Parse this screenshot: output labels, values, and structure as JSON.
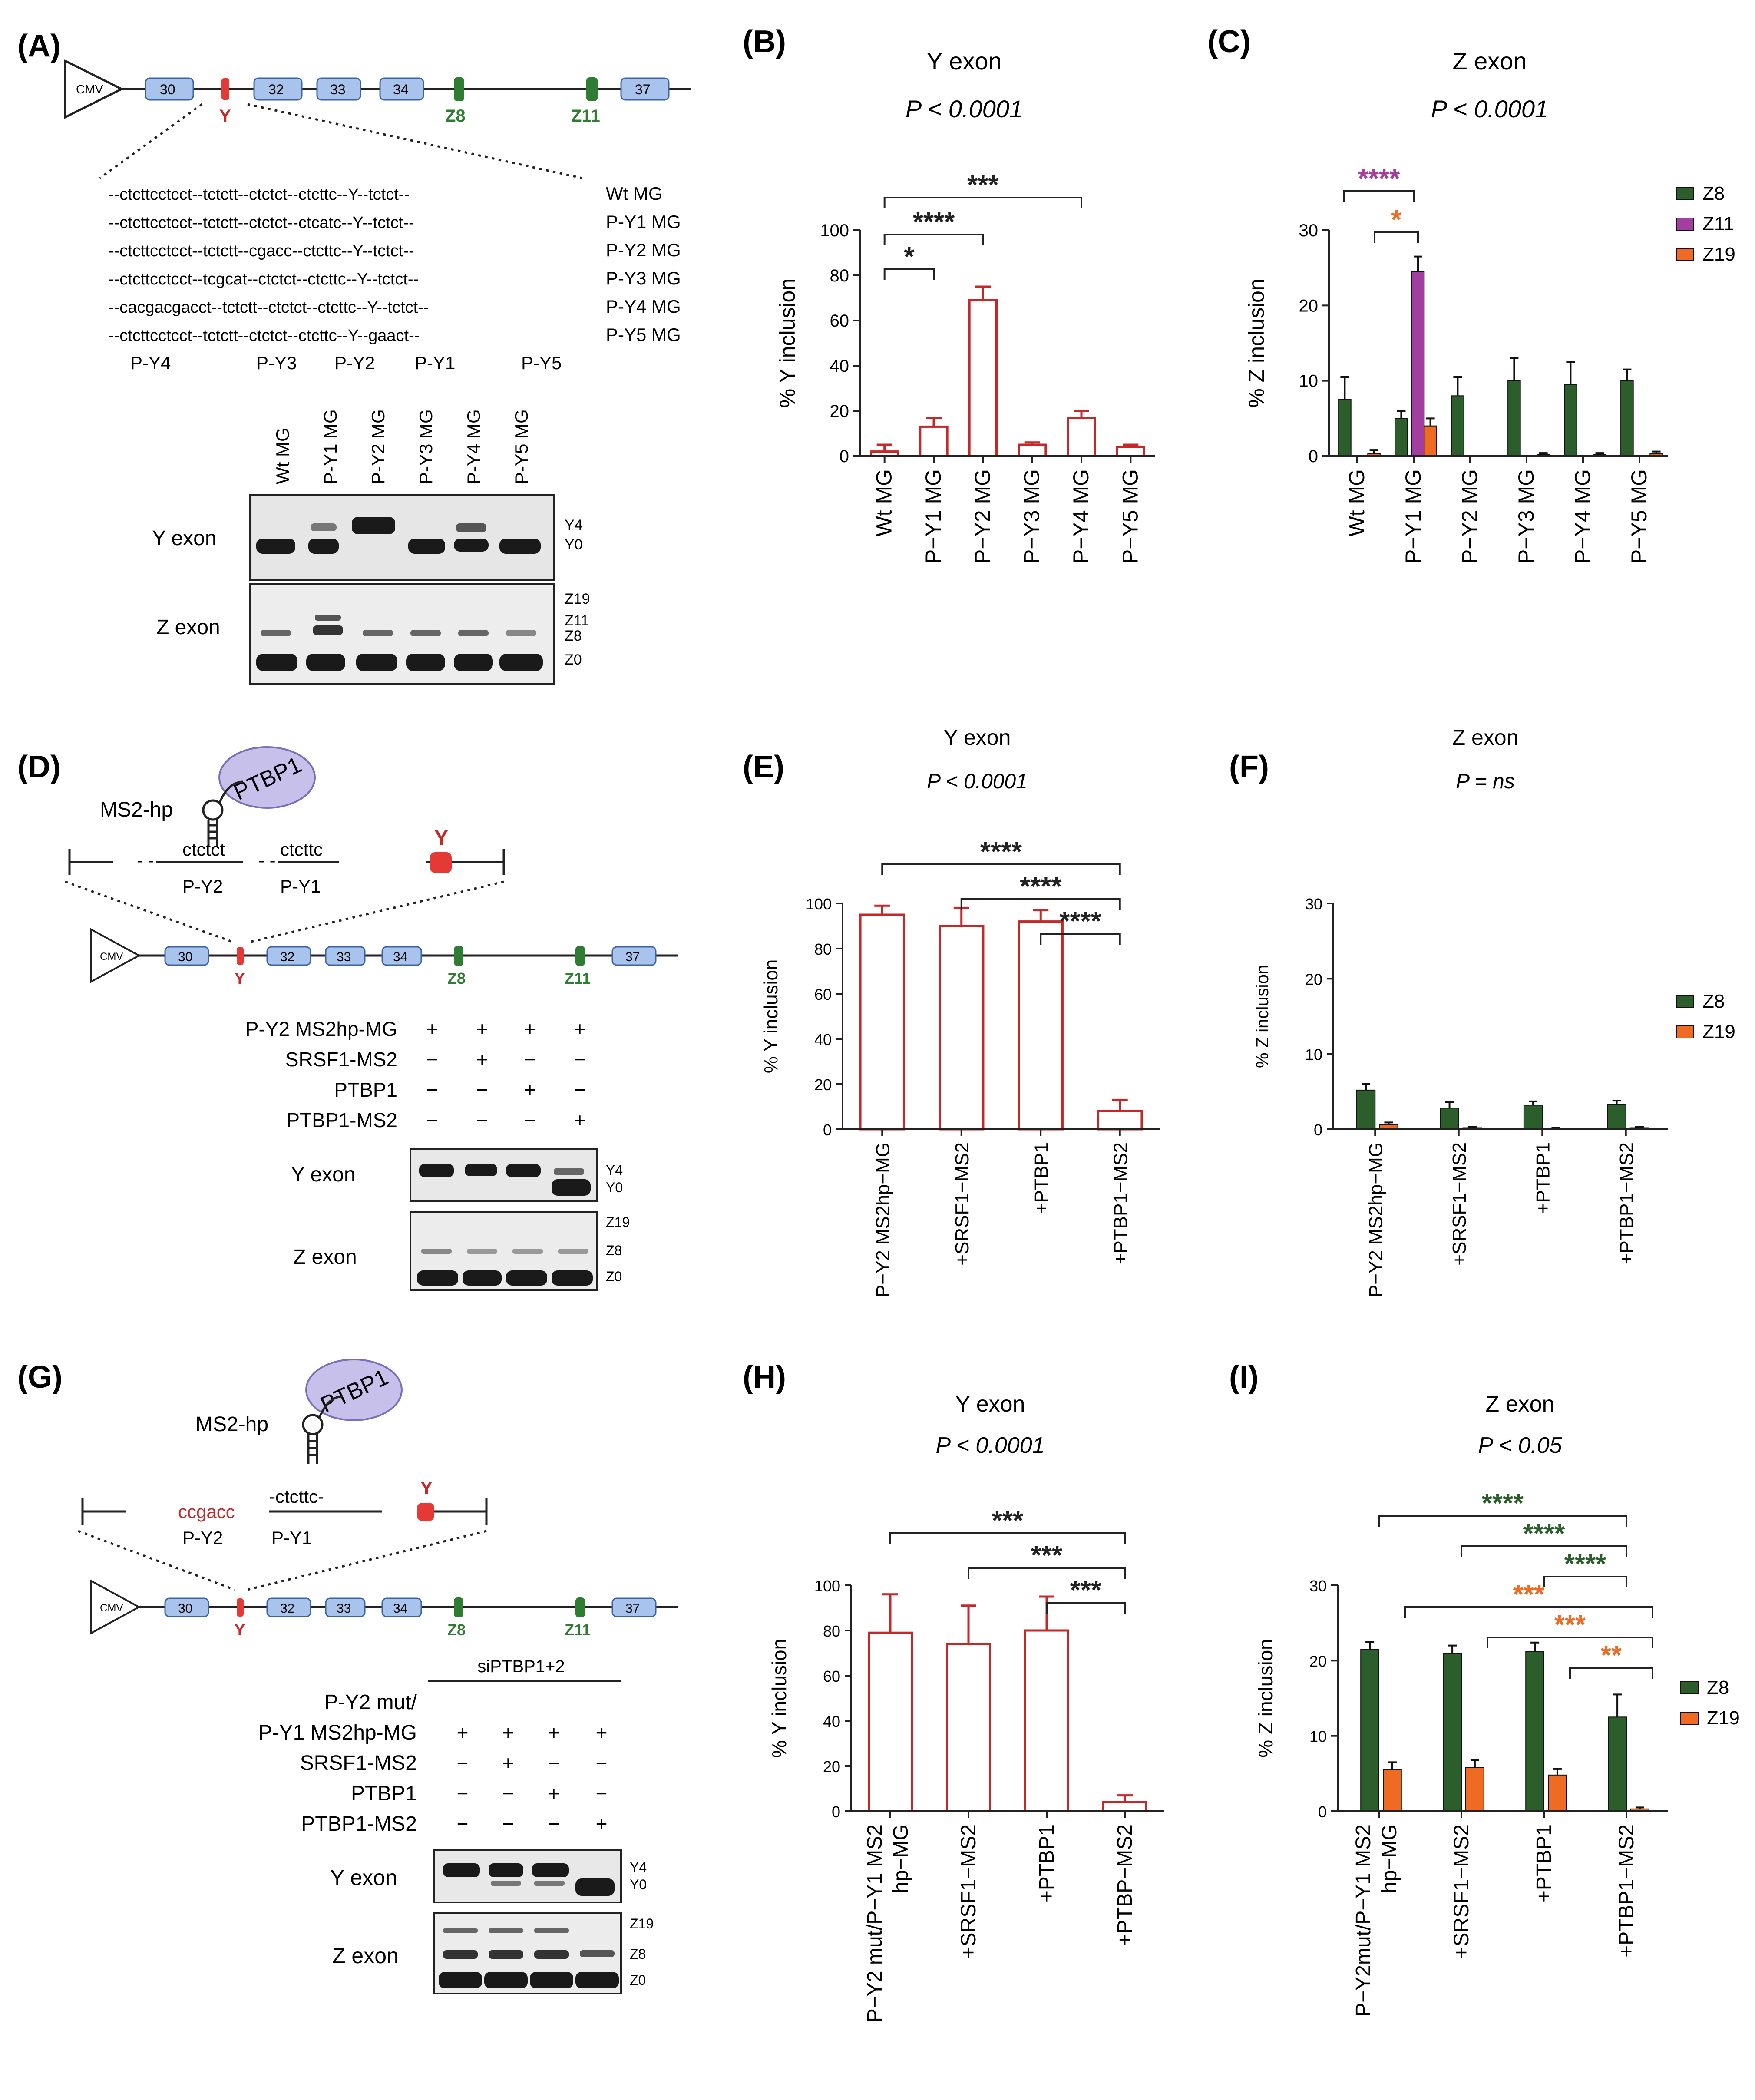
{
  "colors": {
    "green": "#2b5e2a",
    "purple": "#a33ea0",
    "orange": "#ef6a22",
    "red": "#c62828",
    "exon": "#a9c4ec",
    "dark": "#222222"
  },
  "panelA": {
    "letter": "(A)",
    "cmv": "CMV",
    "exons": [
      "30",
      "32",
      "33",
      "34",
      "37"
    ],
    "y": "Y",
    "z8": "Z8",
    "z11": "Z11",
    "seq_rows": [
      {
        "seq": "--ctcttcctcct--tctctt--ctctct--ctcttc--Y--tctct--",
        "label": "Wt MG"
      },
      {
        "seq": "--ctcttcctcct--tctctt--ctctct--ctcatc--Y--tctct--",
        "label": "P-Y1 MG"
      },
      {
        "seq": "--ctcttcctcct--tctctt--cgacc--ctcttc--Y--tctct--",
        "label": "P-Y2 MG"
      },
      {
        "seq": "--ctcttcctcct--tcgcat--ctctct--ctcttc--Y--tctct--",
        "label": "P-Y3 MG"
      },
      {
        "seq": "--cacgacgacct--tctctt--ctctct--ctcttc--Y--tctct--",
        "label": "P-Y4 MG"
      },
      {
        "seq": "--ctcttcctcct--tctctt--ctctct--ctcttc--Y--gaact--",
        "label": "P-Y5 MG"
      }
    ],
    "region_labels": [
      "P-Y4",
      "P-Y3",
      "P-Y2",
      "P-Y1",
      "P-Y5"
    ],
    "lanes": [
      "Wt MG",
      "P-Y1 MG",
      "P-Y2 MG",
      "P-Y3 MG",
      "P-Y4 MG",
      "P-Y5 MG"
    ],
    "gel_y_label": "Y exon",
    "gel_z_label": "Z exon",
    "gel_y_bands": [
      "Y4",
      "Y0"
    ],
    "gel_z_bands": [
      "Z19",
      "Z11",
      "Z8",
      "Z0"
    ]
  },
  "panelB": {
    "letter": "(B)",
    "title": "Y exon",
    "pvalue": "P < 0.0001",
    "ylabel": "% Y inclusion",
    "sig": [
      "*",
      "****",
      "***"
    ]
  },
  "panelC": {
    "letter": "(C)",
    "title": "Z exon",
    "pvalue": "P < 0.0001",
    "ylabel": "% Z inclusion",
    "sig": [
      "****",
      "*"
    ],
    "legend": [
      "Z8",
      "Z11",
      "Z19"
    ]
  },
  "panelD": {
    "letter": "(D)",
    "ms2": "MS2-hp",
    "ptbp1": "PTBP1",
    "seq1": "ctctct",
    "seq2": "ctcttc",
    "dash": "- -",
    "lab1": "P-Y2",
    "lab2": "P-Y1",
    "y": "Y",
    "construct": "P-Y2 MS2hp-MG",
    "rows": [
      {
        "label": "P-Y2 MS2hp-MG",
        "marks": [
          "+",
          "+",
          "+",
          "+"
        ]
      },
      {
        "label": "SRSF1-MS2",
        "marks": [
          "−",
          "+",
          "−",
          "−"
        ]
      },
      {
        "label": "PTBP1",
        "marks": [
          "−",
          "−",
          "+",
          "−"
        ]
      },
      {
        "label": "PTBP1-MS2",
        "marks": [
          "−",
          "−",
          "−",
          "+"
        ]
      }
    ],
    "gel_y_label": "Y exon",
    "gel_z_label": "Z exon",
    "gel_y_bands": [
      "Y4",
      "Y0"
    ],
    "gel_z_bands": [
      "Z19",
      "Z8",
      "Z0"
    ]
  },
  "panelE": {
    "letter": "(E)",
    "title": "Y exon",
    "pvalue": "P < 0.0001",
    "ylabel": "% Y inclusion",
    "sig": [
      "****",
      "****",
      "****"
    ]
  },
  "panelF": {
    "letter": "(F)",
    "title": "Z exon",
    "pvalue": "P  = ns",
    "ylabel": "% Z inclusion",
    "legend": [
      "Z8",
      "Z19"
    ]
  },
  "panelG": {
    "letter": "(G)",
    "ms2": "MS2-hp",
    "ptbp1": "PTBP1",
    "seq1": "ccgacc",
    "seq2": "-ctcttc-",
    "lab1": "P-Y2",
    "lab2": "P-Y1",
    "y": "Y",
    "sipt": "siPTBP1+2",
    "rows": [
      {
        "label": "P-Y2 mut/",
        "marks": [
          "",
          "",
          "",
          ""
        ]
      },
      {
        "label": "P-Y1 MS2hp-MG",
        "marks": [
          "+",
          "+",
          "+",
          "+"
        ]
      },
      {
        "label": "SRSF1-MS2",
        "marks": [
          "−",
          "+",
          "−",
          "−"
        ]
      },
      {
        "label": "PTBP1",
        "marks": [
          "−",
          "−",
          "+",
          "−"
        ]
      },
      {
        "label": "PTBP1-MS2",
        "marks": [
          "−",
          "−",
          "−",
          "+"
        ]
      }
    ],
    "gel_y_label": "Y exon",
    "gel_z_label": "Z exon",
    "gel_y_bands": [
      "Y4",
      "Y0"
    ],
    "gel_z_bands": [
      "Z19",
      "Z8",
      "Z0"
    ]
  },
  "panelH": {
    "letter": "(H)",
    "title": "Y exon",
    "pvalue": "P < 0.0001",
    "ylabel": "% Y inclusion",
    "sig": [
      "***",
      "***",
      "***"
    ]
  },
  "panelI": {
    "letter": "(I)",
    "title": "Z exon",
    "pvalue": "P  < 0.05",
    "ylabel": "% Z inclusion",
    "sig": [
      "****",
      "****",
      "****",
      "***",
      "***",
      "**"
    ],
    "legend": [
      "Z8",
      "Z19"
    ]
  },
  "chart_data": [
    {
      "id": "B",
      "type": "bar",
      "title": "Y exon",
      "ylabel": "% Y inclusion",
      "ylim": [
        0,
        100
      ],
      "yticks": [
        0,
        20,
        40,
        60,
        80,
        100
      ],
      "categories": [
        "Wt MG",
        "P−Y1 MG",
        "P−Y2 MG",
        "P−Y3 MG",
        "P−Y4 MG",
        "P−Y5 MG"
      ],
      "values": [
        2,
        13,
        69,
        5,
        17,
        4
      ],
      "errors": [
        3,
        4,
        6,
        1,
        3,
        1
      ]
    },
    {
      "id": "C",
      "type": "bar",
      "title": "Z exon",
      "ylabel": "% Z inclusion",
      "ylim": [
        0,
        30
      ],
      "yticks": [
        0,
        10,
        20,
        30
      ],
      "categories": [
        "Wt MG",
        "P−Y1 MG",
        "P−Y2 MG",
        "P−Y3 MG",
        "P−Y4 MG",
        "P−Y5 MG"
      ],
      "series": [
        {
          "name": "Z8",
          "values": [
            7.5,
            5,
            8,
            10,
            9.5,
            10
          ],
          "errors": [
            3,
            1,
            2.5,
            3,
            3,
            1.5
          ]
        },
        {
          "name": "Z11",
          "values": [
            0,
            24.5,
            0,
            0,
            0,
            0
          ],
          "errors": [
            0,
            2,
            0,
            0,
            0,
            0
          ]
        },
        {
          "name": "Z19",
          "values": [
            0.3,
            4,
            0,
            0.2,
            0.2,
            0.3
          ],
          "errors": [
            0.5,
            1,
            0,
            0.2,
            0.2,
            0.3
          ]
        }
      ]
    },
    {
      "id": "E",
      "type": "bar",
      "title": "Y exon",
      "ylabel": "% Y inclusion",
      "ylim": [
        0,
        100
      ],
      "yticks": [
        0,
        20,
        40,
        60,
        80,
        100
      ],
      "categories": [
        "P−Y2 MS2hp−MG",
        "+SRSF1−MS2",
        "+PTBP1",
        "+PTBP1−MS2"
      ],
      "values": [
        95,
        90,
        92,
        8
      ],
      "errors": [
        4,
        8,
        5,
        5
      ]
    },
    {
      "id": "F",
      "type": "bar",
      "title": "Z exon",
      "ylabel": "% Z inclusion",
      "ylim": [
        0,
        30
      ],
      "yticks": [
        0,
        10,
        20,
        30
      ],
      "categories": [
        "P−Y2 MS2hp−MG",
        "+SRSF1−MS2",
        "+PTBP1",
        "+PTBP1−MS2"
      ],
      "series": [
        {
          "name": "Z8",
          "values": [
            5.2,
            2.8,
            3.2,
            3.3
          ],
          "errors": [
            0.8,
            0.8,
            0.5,
            0.5
          ]
        },
        {
          "name": "Z19",
          "values": [
            0.6,
            0.2,
            0.1,
            0.2
          ],
          "errors": [
            0.3,
            0.1,
            0.1,
            0.1
          ]
        }
      ]
    },
    {
      "id": "H",
      "type": "bar",
      "title": "Y exon",
      "ylabel": "% Y inclusion",
      "ylim": [
        0,
        100
      ],
      "yticks": [
        0,
        20,
        40,
        60,
        80,
        100
      ],
      "categories": [
        "P−Y2 mut/P−Y1 MS2 hp−MG",
        "+SRSF1−MS2",
        "+PTBP1",
        "+PTBP−MS2"
      ],
      "values": [
        79,
        74,
        80,
        4
      ],
      "errors": [
        17,
        17,
        15,
        3
      ]
    },
    {
      "id": "I",
      "type": "bar",
      "title": "Z exon",
      "ylabel": "% Z inclusion",
      "ylim": [
        0,
        30
      ],
      "yticks": [
        0,
        10,
        20,
        30
      ],
      "categories": [
        "P−Y2mut/P−Y1 MS2 hp−MG",
        "+SRSF1−MS2",
        "+PTBP1",
        "+PTBP1−MS2"
      ],
      "series": [
        {
          "name": "Z8",
          "values": [
            21.5,
            21,
            21.2,
            12.5
          ],
          "errors": [
            1,
            1,
            1.2,
            3
          ]
        },
        {
          "name": "Z19",
          "values": [
            5.5,
            5.8,
            4.8,
            0.3
          ],
          "errors": [
            1,
            1,
            0.8,
            0.2
          ]
        }
      ]
    }
  ]
}
